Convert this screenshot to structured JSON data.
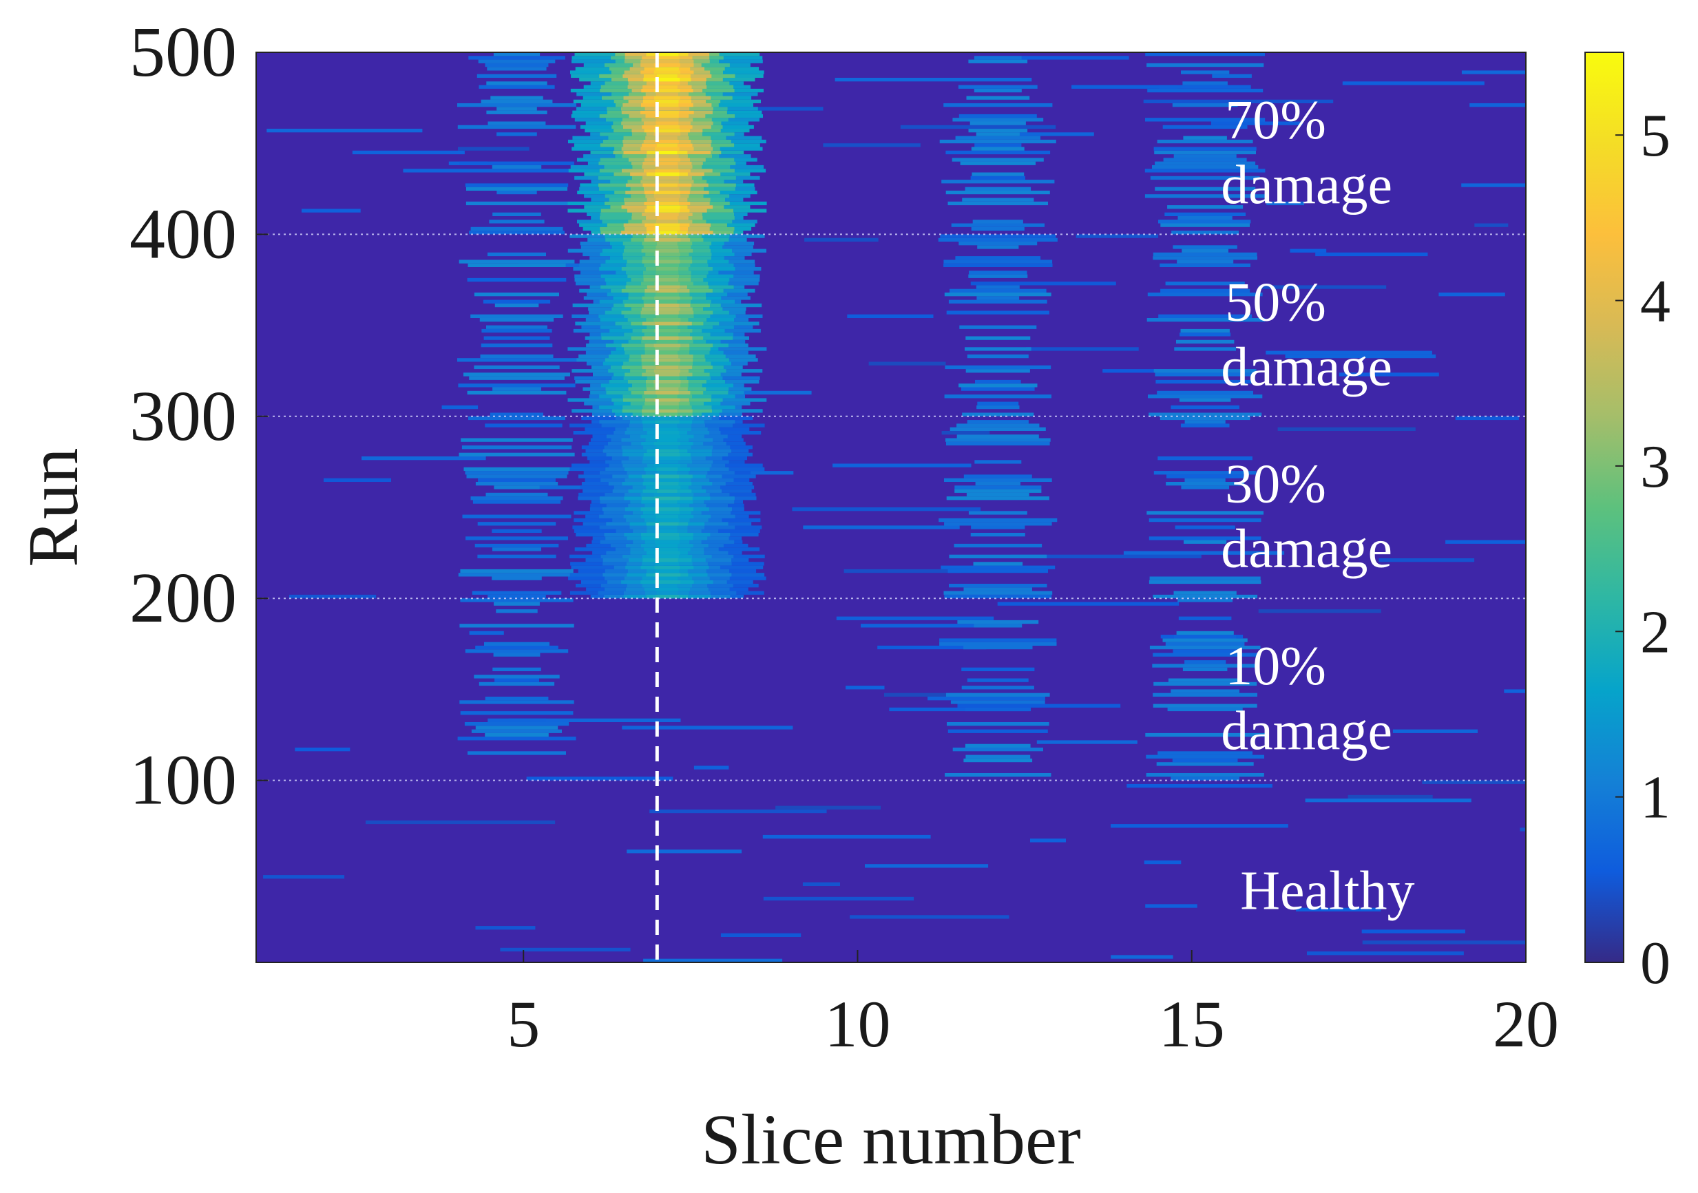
{
  "chart_data": {
    "type": "heatmap",
    "xlabel": "Slice number",
    "ylabel": "Run",
    "xlim": [
      1,
      20
    ],
    "ylim": [
      1,
      500
    ],
    "x_ticks": [
      5,
      10,
      15,
      20
    ],
    "y_ticks": [
      100,
      200,
      300,
      400,
      500
    ],
    "colorbar": {
      "min": 0,
      "max": 5.5,
      "ticks": [
        0,
        1,
        2,
        3,
        4,
        5
      ],
      "colormap": "parula"
    },
    "reference_line": {
      "x": 7,
      "style": "dashed",
      "color": "#ffffff"
    },
    "group_boundaries": [
      100,
      200,
      300,
      400
    ],
    "groups": [
      {
        "label_line1": "Healthy",
        "label_line2": "",
        "runs": [
          1,
          100
        ],
        "peak_value": 0.6
      },
      {
        "label_line1": "10%",
        "label_line2": "damage",
        "runs": [
          101,
          200
        ],
        "peak_value": 0.9
      },
      {
        "label_line1": "30%",
        "label_line2": "damage",
        "runs": [
          201,
          300
        ],
        "peak_value": 1.8
      },
      {
        "label_line1": "50%",
        "label_line2": "damage",
        "runs": [
          301,
          400
        ],
        "peak_value": 3.2
      },
      {
        "label_line1": "70%",
        "label_line2": "damage",
        "runs": [
          401,
          500
        ],
        "peak_value": 4.7
      }
    ]
  }
}
